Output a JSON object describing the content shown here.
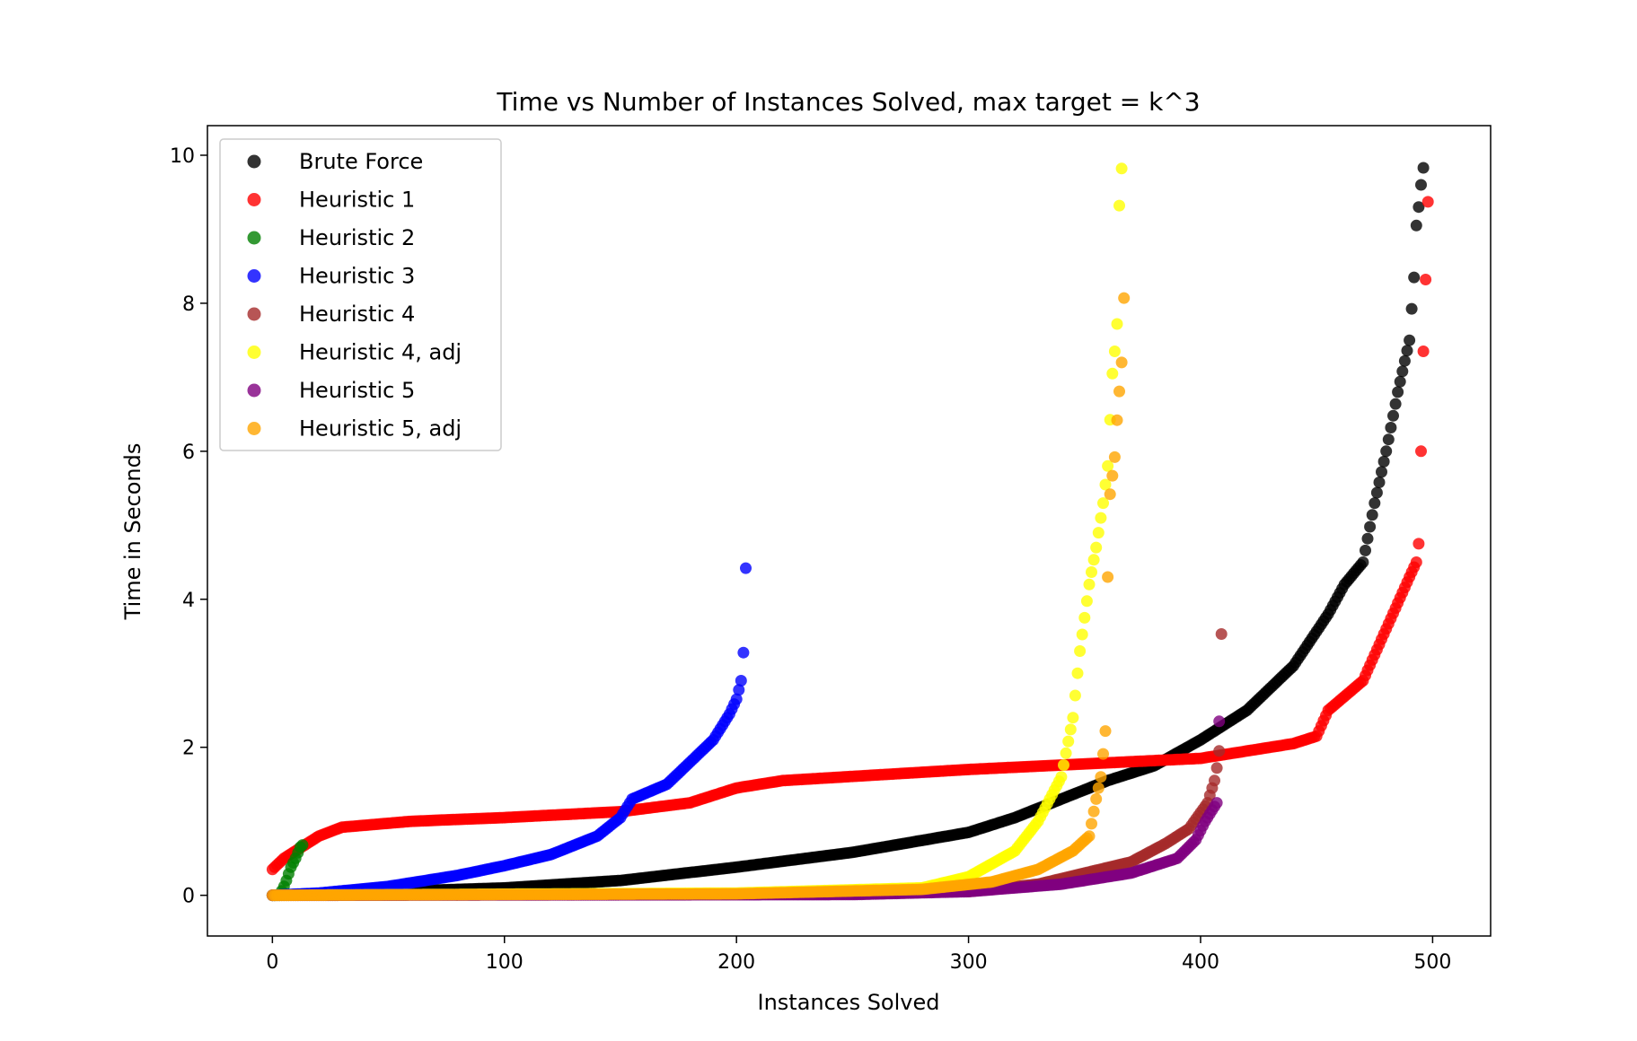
{
  "chart_data": {
    "type": "scatter",
    "title": "Time vs Number of Instances Solved, max target = k^3",
    "xlabel": "Instances Solved",
    "ylabel": "Time in Seconds",
    "xlim": [
      -28,
      525
    ],
    "ylim": [
      -0.55,
      10.4
    ],
    "xticks": [
      0,
      100,
      200,
      300,
      400,
      500
    ],
    "yticks": [
      0,
      2,
      4,
      6,
      8,
      10
    ],
    "grid": false,
    "legend_position": "top-left",
    "series": [
      {
        "name": "Brute Force",
        "color": "#000000",
        "curve": [
          [
            0,
            0.0
          ],
          [
            50,
            0.05
          ],
          [
            100,
            0.1
          ],
          [
            150,
            0.2
          ],
          [
            200,
            0.38
          ],
          [
            250,
            0.58
          ],
          [
            300,
            0.85
          ],
          [
            320,
            1.05
          ],
          [
            340,
            1.3
          ],
          [
            360,
            1.55
          ],
          [
            380,
            1.75
          ],
          [
            400,
            2.1
          ],
          [
            420,
            2.5
          ],
          [
            440,
            3.1
          ],
          [
            455,
            3.8
          ],
          [
            462,
            4.2
          ],
          [
            470,
            4.5
          ],
          [
            475,
            5.3
          ],
          [
            480,
            6.0
          ],
          [
            485,
            6.8
          ],
          [
            490,
            7.5
          ],
          [
            492,
            8.35
          ],
          [
            493,
            9.05
          ],
          [
            494,
            9.3
          ],
          [
            495,
            9.6
          ],
          [
            496,
            9.83
          ]
        ]
      },
      {
        "name": "Heuristic 1",
        "color": "#ff0000",
        "curve": [
          [
            0,
            0.35
          ],
          [
            5,
            0.5
          ],
          [
            10,
            0.6
          ],
          [
            20,
            0.8
          ],
          [
            30,
            0.92
          ],
          [
            60,
            1.0
          ],
          [
            100,
            1.05
          ],
          [
            150,
            1.13
          ],
          [
            180,
            1.25
          ],
          [
            200,
            1.45
          ],
          [
            220,
            1.55
          ],
          [
            300,
            1.7
          ],
          [
            400,
            1.85
          ],
          [
            440,
            2.05
          ],
          [
            450,
            2.15
          ],
          [
            455,
            2.5
          ],
          [
            470,
            2.9
          ],
          [
            480,
            3.6
          ],
          [
            490,
            4.3
          ],
          [
            493,
            4.5
          ],
          [
            494,
            4.75
          ],
          [
            495,
            6.0
          ],
          [
            496,
            7.35
          ],
          [
            497,
            8.32
          ],
          [
            498,
            9.37
          ]
        ]
      },
      {
        "name": "Heuristic 2",
        "color": "#008000",
        "curve": [
          [
            0,
            0.0
          ],
          [
            3,
            0.0
          ],
          [
            5,
            0.12
          ],
          [
            6,
            0.2
          ],
          [
            8,
            0.38
          ],
          [
            10,
            0.5
          ],
          [
            12,
            0.65
          ],
          [
            13,
            0.68
          ]
        ]
      },
      {
        "name": "Heuristic 3",
        "color": "#0000ff",
        "curve": [
          [
            0,
            0.0
          ],
          [
            20,
            0.03
          ],
          [
            50,
            0.12
          ],
          [
            80,
            0.27
          ],
          [
            100,
            0.4
          ],
          [
            120,
            0.55
          ],
          [
            140,
            0.8
          ],
          [
            150,
            1.05
          ],
          [
            155,
            1.3
          ],
          [
            170,
            1.5
          ],
          [
            180,
            1.8
          ],
          [
            190,
            2.1
          ],
          [
            197,
            2.45
          ],
          [
            200,
            2.65
          ],
          [
            202,
            2.9
          ],
          [
            203,
            3.28
          ],
          [
            204,
            4.42
          ]
        ]
      },
      {
        "name": "Heuristic 4",
        "color": "#a52a2a",
        "curve": [
          [
            300,
            0.05
          ],
          [
            330,
            0.15
          ],
          [
            350,
            0.3
          ],
          [
            370,
            0.45
          ],
          [
            385,
            0.7
          ],
          [
            395,
            0.9
          ],
          [
            403,
            1.25
          ],
          [
            406,
            1.55
          ],
          [
            407,
            1.72
          ],
          [
            408,
            1.95
          ],
          [
            409,
            3.53
          ]
        ]
      },
      {
        "name": "Heuristic 4, adj",
        "color": "#ffff00",
        "curve": [
          [
            0,
            0.0
          ],
          [
            200,
            0.03
          ],
          [
            280,
            0.1
          ],
          [
            300,
            0.25
          ],
          [
            320,
            0.6
          ],
          [
            330,
            1.0
          ],
          [
            340,
            1.6
          ],
          [
            345,
            2.4
          ],
          [
            348,
            3.3
          ],
          [
            352,
            4.2
          ],
          [
            355,
            4.7
          ],
          [
            358,
            5.3
          ],
          [
            360,
            5.8
          ],
          [
            362,
            7.05
          ],
          [
            363,
            7.35
          ],
          [
            364,
            7.72
          ],
          [
            365,
            9.32
          ],
          [
            366,
            9.82
          ]
        ]
      },
      {
        "name": "Heuristic 5",
        "color": "#800080",
        "curve": [
          [
            0,
            0.0
          ],
          [
            250,
            0.01
          ],
          [
            300,
            0.05
          ],
          [
            340,
            0.15
          ],
          [
            370,
            0.3
          ],
          [
            390,
            0.5
          ],
          [
            398,
            0.75
          ],
          [
            402,
            1.0
          ],
          [
            405,
            1.15
          ],
          [
            407,
            1.25
          ],
          [
            408,
            2.35
          ]
        ]
      },
      {
        "name": "Heuristic 5, adj",
        "color": "#ffa500",
        "curve": [
          [
            0,
            0.0
          ],
          [
            200,
            0.02
          ],
          [
            280,
            0.08
          ],
          [
            310,
            0.18
          ],
          [
            330,
            0.35
          ],
          [
            345,
            0.6
          ],
          [
            352,
            0.8
          ],
          [
            355,
            1.3
          ],
          [
            357,
            1.6
          ],
          [
            359,
            2.22
          ],
          [
            360,
            4.3
          ],
          [
            361,
            5.42
          ],
          [
            363,
            5.92
          ],
          [
            364,
            6.42
          ],
          [
            366,
            7.2
          ],
          [
            367,
            8.07
          ]
        ]
      }
    ]
  }
}
